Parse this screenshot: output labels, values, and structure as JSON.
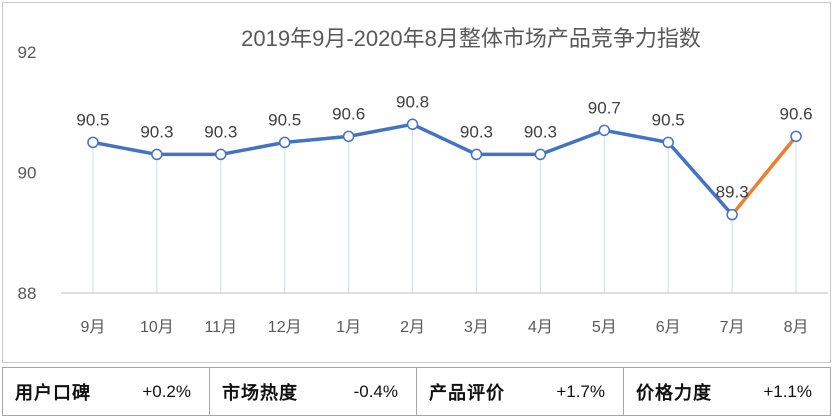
{
  "chart_data": {
    "type": "line",
    "title": "2019年9月-2020年8月整体市场产品竞争力指数",
    "categories": [
      "9月",
      "10月",
      "11月",
      "12月",
      "1月",
      "2月",
      "3月",
      "4月",
      "5月",
      "6月",
      "7月",
      "8月"
    ],
    "series": [
      {
        "values": [
          90.5,
          90.3,
          90.3,
          90.5,
          90.6,
          90.8,
          90.3,
          90.3,
          90.7,
          90.5,
          89.3,
          90.6
        ]
      }
    ],
    "data_labels": [
      "90.5",
      "90.3",
      "90.3",
      "90.5",
      "90.6",
      "90.8",
      "90.3",
      "90.3",
      "90.7",
      "90.5",
      "89.3",
      "90.6"
    ],
    "y_ticks": [
      "92",
      "90",
      "88"
    ],
    "ylim": [
      88,
      92
    ],
    "xlabel": "",
    "ylabel": "",
    "grid": false,
    "legend": "none",
    "colors": {
      "line": "#4472c4",
      "last_segment": "#ed7d31",
      "drop_lines": "#d6e3ee",
      "axis": "#bfbfbf"
    }
  },
  "stats": [
    {
      "label": "用户口碑",
      "value": "+0.2%"
    },
    {
      "label": "市场热度",
      "value": "-0.4%"
    },
    {
      "label": "产品评价",
      "value": "+1.7%"
    },
    {
      "label": "价格力度",
      "value": "+1.1%"
    }
  ]
}
